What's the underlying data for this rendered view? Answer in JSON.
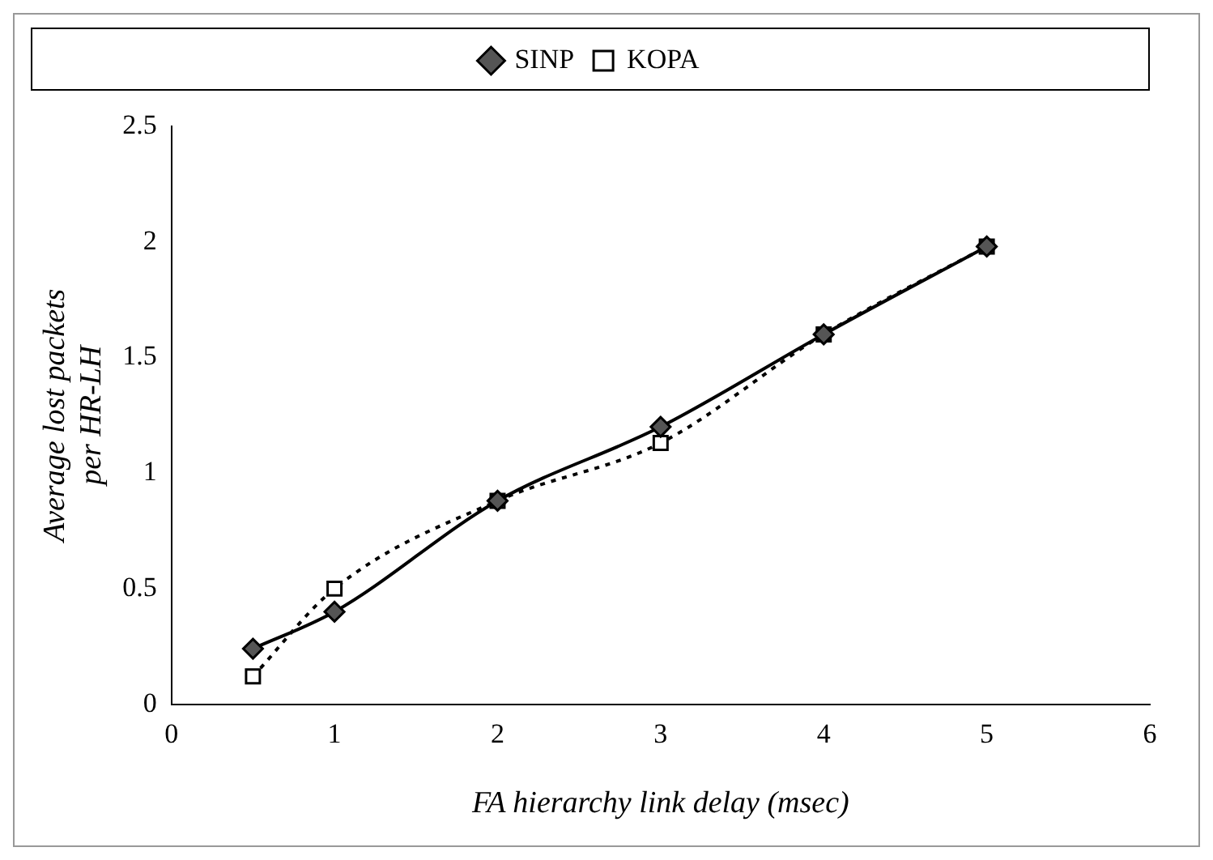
{
  "chart_data": {
    "type": "line",
    "xlabel": "FA hierarchy link delay (msec)",
    "ylabel": "Average lost packets per HR-LH",
    "x": [
      0.5,
      1,
      2,
      3,
      4,
      5
    ],
    "series": [
      {
        "name": "KOPA",
        "color": "#000000",
        "values": [
          0.12,
          0.5,
          0.88,
          1.13,
          1.6,
          1.98
        ],
        "marker": "square",
        "line_style": "dotted"
      },
      {
        "name": "SINP",
        "color": "#000000",
        "values": [
          0.24,
          0.4,
          0.88,
          1.2,
          1.6,
          1.98
        ],
        "marker": "diamond",
        "line_style": "solid"
      }
    ],
    "xlim": [
      0,
      6
    ],
    "xticks": [
      0,
      1,
      2,
      3,
      4,
      5,
      6
    ],
    "ylim": [
      0,
      2.5
    ],
    "yticks": [
      0,
      0.5,
      1,
      1.5,
      2,
      2.5
    ],
    "grid": false,
    "legend": "top"
  }
}
